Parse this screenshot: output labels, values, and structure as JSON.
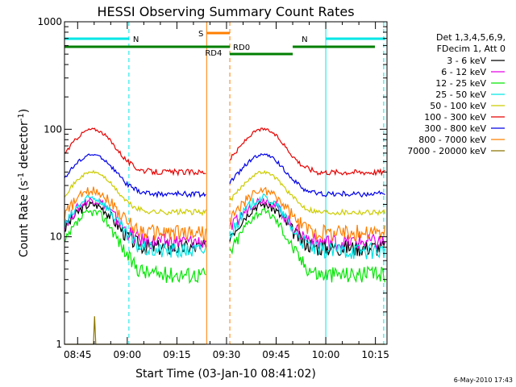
{
  "footer_date": "6-May-2010 17:43",
  "chart_data": {
    "type": "line",
    "title": "HESSI Observing Summary Count Rates",
    "xlabel": "Start Time (03-Jan-10 08:41:02)",
    "ylabel_main": "Count Rate (s",
    "ylabel_sup1": "-1",
    "ylabel_mid": " detector",
    "ylabel_sup2": "-1",
    "ylabel_end": ")",
    "yscale": "log",
    "ylim": [
      1,
      1000
    ],
    "xlim": [
      "08:41:02",
      "10:18:30"
    ],
    "x_ticks": [
      "08:45",
      "09:00",
      "09:15",
      "09:30",
      "09:45",
      "10:00",
      "10:15"
    ],
    "y_ticks": [
      {
        "value": 1,
        "label": "1"
      },
      {
        "value": 10,
        "label": "10"
      },
      {
        "value": 100,
        "label": "100"
      },
      {
        "value": 1000,
        "label": "1000"
      }
    ],
    "legend": {
      "position": "right",
      "header": [
        "Det 1,3,4,5,6,9,",
        "FDecim 1, Att 0"
      ],
      "entries": [
        {
          "label": "3 - 6 keV",
          "color": "#000000"
        },
        {
          "label": "6 - 12 keV",
          "color": "#e600e6"
        },
        {
          "label": "12 - 25 keV",
          "color": "#00e600"
        },
        {
          "label": "25 - 50 keV",
          "color": "#00e6e6"
        },
        {
          "label": "50 - 100 keV",
          "color": "#cccc00"
        },
        {
          "label": "100 - 300 keV",
          "color": "#e60000"
        },
        {
          "label": "300 - 800 keV",
          "color": "#0000e6"
        },
        {
          "label": "800 - 7000 keV",
          "color": "#ff7f00"
        },
        {
          "label": "7000 - 20000 keV",
          "color": "#8b7500"
        }
      ]
    },
    "series_profile": {
      "shape": "orbital modulation with night gaps and SAA",
      "levels": [
        {
          "name": "3 - 6 keV",
          "peak": 20,
          "trough": 8
        },
        {
          "name": "6 - 12 keV",
          "peak": 22,
          "trough": 9
        },
        {
          "name": "12 - 25 keV",
          "peak": 17,
          "trough": 4.5
        },
        {
          "name": "25 - 50 keV",
          "peak": 23,
          "trough": 7.5
        },
        {
          "name": "50 - 100 keV",
          "peak": 40,
          "trough": 17
        },
        {
          "name": "100 - 300 keV",
          "peak": 100,
          "trough": 40
        },
        {
          "name": "300 - 800 keV",
          "peak": 58,
          "trough": 25
        },
        {
          "name": "800 - 7000 keV",
          "peak": 27,
          "trough": 11
        },
        {
          "name": "7000 - 20000 keV",
          "peak": 2,
          "trough": 1
        }
      ]
    },
    "flags": [
      {
        "label": "N",
        "color": "#00e6e6",
        "start": "08:41:02",
        "end": "09:00:30"
      },
      {
        "label": "N",
        "color": "#00e6e6",
        "start": "10:00:00",
        "end": "10:18:00"
      },
      {
        "label": "S",
        "color": "#ff7f00",
        "start": "09:24:00",
        "end": "09:31:00"
      },
      {
        "label": "RD0",
        "color": "#007f00",
        "start": "09:31:00",
        "end": "09:50:00"
      },
      {
        "label": "RD4",
        "color": "#007f00",
        "start": "09:24:00",
        "end": "09:24:30"
      }
    ],
    "intervals": [
      {
        "type": "night",
        "color": "#00e6e6",
        "times": [
          "09:00:30",
          "10:00:00",
          "10:17:30"
        ]
      },
      {
        "type": "saa",
        "color": "#ff7f00",
        "times": [
          "09:24:00",
          "09:31:00"
        ]
      }
    ]
  }
}
